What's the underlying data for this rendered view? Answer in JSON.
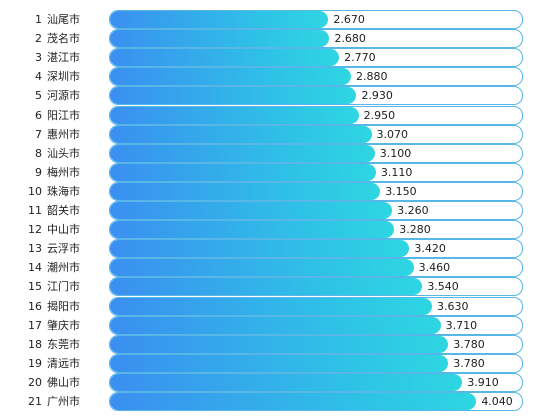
{
  "chart_data": {
    "type": "bar",
    "orientation": "horizontal",
    "ranks": [
      "1",
      "2",
      "3",
      "4",
      "5",
      "6",
      "7",
      "8",
      "9",
      "10",
      "11",
      "12",
      "13",
      "14",
      "15",
      "16",
      "17",
      "18",
      "19",
      "20",
      "21"
    ],
    "categories": [
      "汕尾市",
      "茂名市",
      "湛江市",
      "深圳市",
      "河源市",
      "阳江市",
      "惠州市",
      "汕头市",
      "梅州市",
      "珠海市",
      "韶关市",
      "中山市",
      "云浮市",
      "潮州市",
      "江门市",
      "揭阳市",
      "肇庆市",
      "东莞市",
      "清远市",
      "佛山市",
      "广州市"
    ],
    "values": [
      2.67,
      2.68,
      2.77,
      2.88,
      2.93,
      2.95,
      3.07,
      3.1,
      3.11,
      3.15,
      3.26,
      3.28,
      3.42,
      3.46,
      3.54,
      3.63,
      3.71,
      3.78,
      3.78,
      3.91,
      4.04
    ],
    "value_labels": [
      "2.670",
      "2.680",
      "2.770",
      "2.880",
      "2.930",
      "2.950",
      "3.070",
      "3.100",
      "3.110",
      "3.150",
      "3.260",
      "3.280",
      "3.420",
      "3.460",
      "3.540",
      "3.630",
      "3.710",
      "3.780",
      "3.780",
      "3.910",
      "4.040"
    ],
    "title": "",
    "xlabel": "",
    "ylabel": "",
    "grid": false,
    "colors": {
      "bar_start": "#3a8ff0",
      "bar_end": "#2ed6e2",
      "track_border": "#59b7e8"
    }
  }
}
